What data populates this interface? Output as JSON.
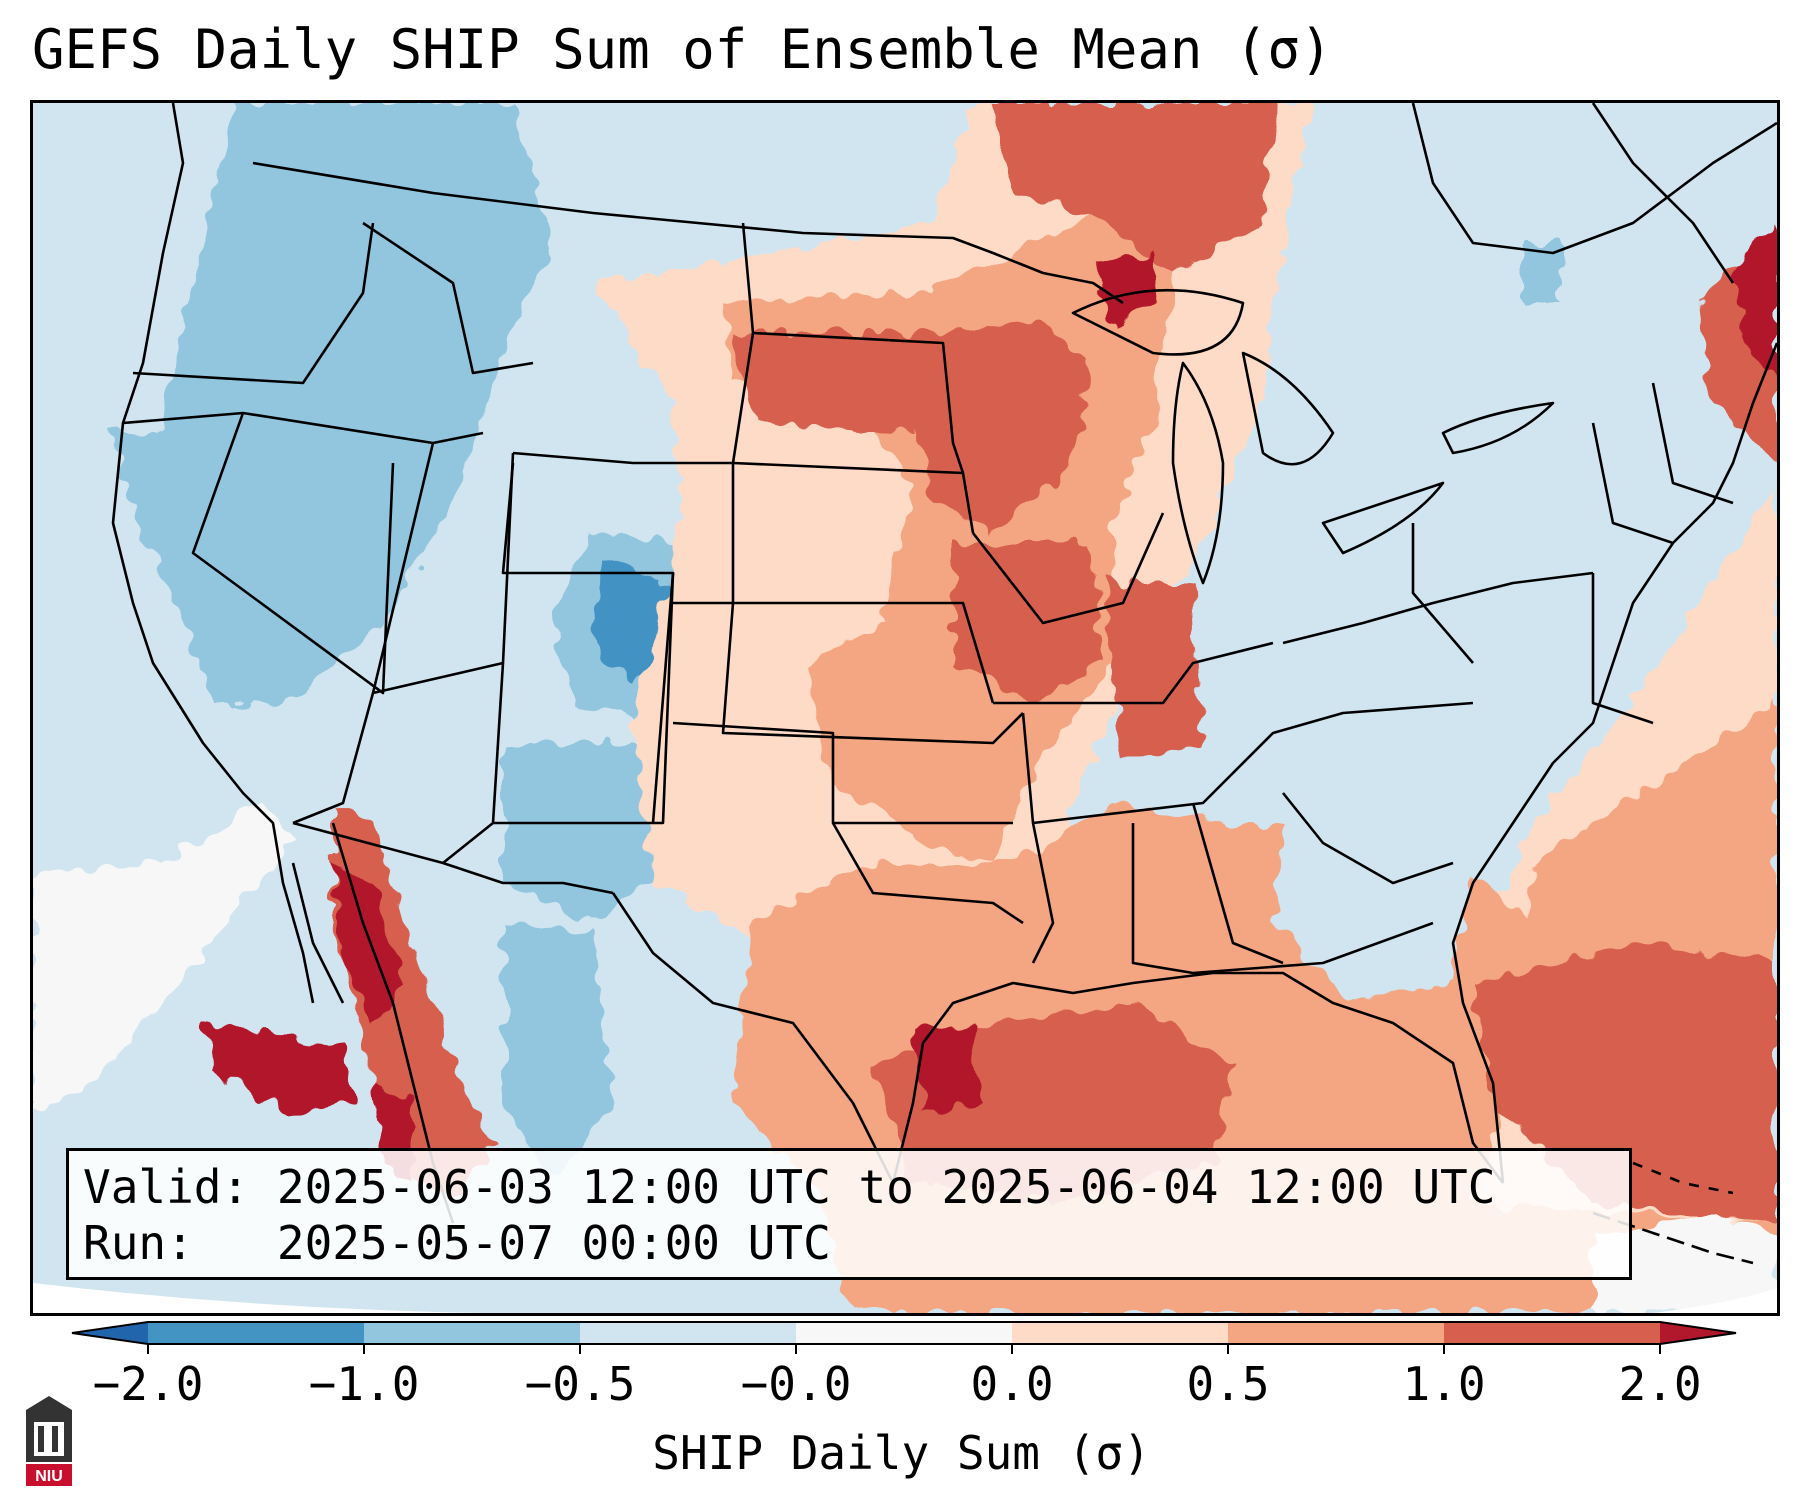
{
  "title": "GEFS Daily SHIP Sum of Ensemble Mean (σ)",
  "info": {
    "valid_label": "Valid:",
    "valid_value": "2025-06-03 12:00 UTC to 2025-06-04 12:00 UTC",
    "run_label": "Run:",
    "run_value": "2025-05-07 00:00 UTC"
  },
  "colorbar": {
    "label": "SHIP Daily Sum (σ)",
    "ticks": [
      "−2.0",
      "−1.0",
      "−0.5",
      "−0.0",
      "0.0",
      "0.5",
      "1.0",
      "2.0"
    ],
    "colors": [
      "#4393c3",
      "#92c5de",
      "#d1e5f0",
      "#f7f7f7",
      "#fddbc7",
      "#f4a582",
      "#d6604d"
    ],
    "under_color": "#2166ac",
    "over_color": "#b2182b",
    "extend": "both"
  },
  "map": {
    "projection": "lambert-conformal",
    "region": "CONUS",
    "background_color": "#d1e5f0",
    "line_color": "#000000"
  },
  "logo": {
    "text": "NIU",
    "color": "#c8102e"
  }
}
